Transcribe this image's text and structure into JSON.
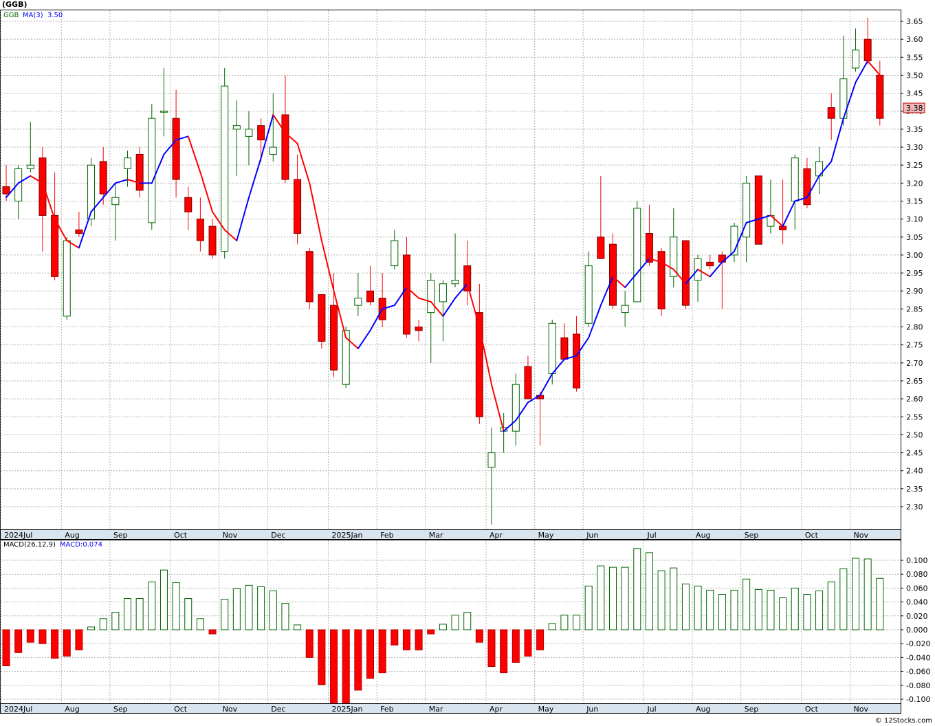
{
  "title": "(GGB)",
  "footer": "© 12Stocks.com",
  "legend": {
    "symbol": "GGB",
    "ma_label": "MA(3)",
    "ma_value": "3.50",
    "macd_label": "MACD(26,12,9)",
    "macd_value": "MACD:0.074"
  },
  "last_price_label": "3.38",
  "colors": {
    "up": "#006400",
    "down": "#ff0000",
    "ma_up": "#0000ff",
    "ma_down": "#ff0000",
    "grid": "#b0b0b0",
    "axis_bar": "#d8e4ee",
    "price_tag_bg": "#f0b8b8"
  },
  "chart_data": [
    {
      "type": "candlestick",
      "title": "(GGB)",
      "ylim": [
        2.25,
        3.67
      ],
      "yticks": [
        "2.30",
        "2.35",
        "2.40",
        "2.45",
        "2.50",
        "2.55",
        "2.60",
        "2.65",
        "2.70",
        "2.75",
        "2.80",
        "2.85",
        "2.90",
        "2.95",
        "3.00",
        "3.05",
        "3.10",
        "3.15",
        "3.20",
        "3.25",
        "3.30",
        "3.35",
        "3.40",
        "3.45",
        "3.50",
        "3.55",
        "3.60",
        "3.65"
      ],
      "month_labels": [
        {
          "label": "2024Jul",
          "week": 0
        },
        {
          "label": "Aug",
          "week": 5
        },
        {
          "label": "Sep",
          "week": 9
        },
        {
          "label": "Oct",
          "week": 14
        },
        {
          "label": "Nov",
          "week": 18
        },
        {
          "label": "Dec",
          "week": 22
        },
        {
          "label": "2025Jan",
          "week": 27
        },
        {
          "label": "Feb",
          "week": 31
        },
        {
          "label": "Mar",
          "week": 35
        },
        {
          "label": "Apr",
          "week": 40
        },
        {
          "label": "May",
          "week": 44
        },
        {
          "label": "Jun",
          "week": 48
        },
        {
          "label": "Jul",
          "week": 53
        },
        {
          "label": "Aug",
          "week": 57
        },
        {
          "label": "Sep",
          "week": 61
        },
        {
          "label": "Oct",
          "week": 66
        },
        {
          "label": "Nov",
          "week": 70
        }
      ],
      "candles": [
        {
          "o": 3.19,
          "h": 3.25,
          "l": 3.15,
          "c": 3.17
        },
        {
          "o": 3.15,
          "h": 3.25,
          "l": 3.1,
          "c": 3.24
        },
        {
          "o": 3.24,
          "h": 3.37,
          "l": 3.23,
          "c": 3.25
        },
        {
          "o": 3.27,
          "h": 3.3,
          "l": 3.01,
          "c": 3.11
        },
        {
          "o": 3.11,
          "h": 3.23,
          "l": 2.93,
          "c": 2.94
        },
        {
          "o": 2.83,
          "h": 3.05,
          "l": 2.82,
          "c": 3.04
        },
        {
          "o": 3.07,
          "h": 3.12,
          "l": 3.05,
          "c": 3.06
        },
        {
          "o": 3.1,
          "h": 3.27,
          "l": 3.08,
          "c": 3.25
        },
        {
          "o": 3.26,
          "h": 3.3,
          "l": 3.14,
          "c": 3.17
        },
        {
          "o": 3.14,
          "h": 3.2,
          "l": 3.04,
          "c": 3.16
        },
        {
          "o": 3.24,
          "h": 3.29,
          "l": 3.19,
          "c": 3.27
        },
        {
          "o": 3.28,
          "h": 3.3,
          "l": 3.16,
          "c": 3.18
        },
        {
          "o": 3.09,
          "h": 3.42,
          "l": 3.07,
          "c": 3.38
        },
        {
          "o": 3.4,
          "h": 3.52,
          "l": 3.33,
          "c": 3.4
        },
        {
          "o": 3.38,
          "h": 3.46,
          "l": 3.16,
          "c": 3.21
        },
        {
          "o": 3.16,
          "h": 3.19,
          "l": 3.07,
          "c": 3.12
        },
        {
          "o": 3.1,
          "h": 3.16,
          "l": 3.01,
          "c": 3.04
        },
        {
          "o": 3.08,
          "h": 3.1,
          "l": 2.99,
          "c": 3.0
        },
        {
          "o": 3.01,
          "h": 3.52,
          "l": 2.99,
          "c": 3.47
        },
        {
          "o": 3.35,
          "h": 3.43,
          "l": 3.22,
          "c": 3.36
        },
        {
          "o": 3.33,
          "h": 3.4,
          "l": 3.25,
          "c": 3.35
        },
        {
          "o": 3.36,
          "h": 3.38,
          "l": 3.26,
          "c": 3.32
        },
        {
          "o": 3.28,
          "h": 3.45,
          "l": 3.26,
          "c": 3.3
        },
        {
          "o": 3.39,
          "h": 3.5,
          "l": 3.2,
          "c": 3.21
        },
        {
          "o": 3.21,
          "h": 3.28,
          "l": 3.03,
          "c": 3.06
        },
        {
          "o": 3.01,
          "h": 3.02,
          "l": 2.85,
          "c": 2.87
        },
        {
          "o": 2.89,
          "h": 2.89,
          "l": 2.74,
          "c": 2.76
        },
        {
          "o": 2.86,
          "h": 2.95,
          "l": 2.66,
          "c": 2.68
        },
        {
          "o": 2.64,
          "h": 2.8,
          "l": 2.63,
          "c": 2.79
        },
        {
          "o": 2.86,
          "h": 2.95,
          "l": 2.83,
          "c": 2.88
        },
        {
          "o": 2.9,
          "h": 2.97,
          "l": 2.86,
          "c": 2.87
        },
        {
          "o": 2.88,
          "h": 2.95,
          "l": 2.8,
          "c": 2.82
        },
        {
          "o": 2.97,
          "h": 3.07,
          "l": 2.96,
          "c": 3.04
        },
        {
          "o": 3.0,
          "h": 3.05,
          "l": 2.77,
          "c": 2.78
        },
        {
          "o": 2.8,
          "h": 2.82,
          "l": 2.76,
          "c": 2.79
        },
        {
          "o": 2.84,
          "h": 2.95,
          "l": 2.7,
          "c": 2.93
        },
        {
          "o": 2.87,
          "h": 2.93,
          "l": 2.76,
          "c": 2.92
        },
        {
          "o": 2.92,
          "h": 3.06,
          "l": 2.91,
          "c": 2.93
        },
        {
          "o": 2.97,
          "h": 3.04,
          "l": 2.86,
          "c": 2.9
        },
        {
          "o": 2.84,
          "h": 2.92,
          "l": 2.53,
          "c": 2.55
        },
        {
          "o": 2.41,
          "h": 2.52,
          "l": 2.25,
          "c": 2.45
        },
        {
          "o": 2.51,
          "h": 2.56,
          "l": 2.45,
          "c": 2.52
        },
        {
          "o": 2.51,
          "h": 2.67,
          "l": 2.47,
          "c": 2.64
        },
        {
          "o": 2.69,
          "h": 2.72,
          "l": 2.6,
          "c": 2.6
        },
        {
          "o": 2.61,
          "h": 2.62,
          "l": 2.47,
          "c": 2.6
        },
        {
          "o": 2.67,
          "h": 2.82,
          "l": 2.64,
          "c": 2.81
        },
        {
          "o": 2.77,
          "h": 2.81,
          "l": 2.71,
          "c": 2.71
        },
        {
          "o": 2.78,
          "h": 2.83,
          "l": 2.62,
          "c": 2.63
        },
        {
          "o": 2.81,
          "h": 3.01,
          "l": 2.8,
          "c": 2.97
        },
        {
          "o": 3.05,
          "h": 3.22,
          "l": 2.99,
          "c": 2.99
        },
        {
          "o": 3.03,
          "h": 3.06,
          "l": 2.85,
          "c": 2.86
        },
        {
          "o": 2.84,
          "h": 2.9,
          "l": 2.8,
          "c": 2.86
        },
        {
          "o": 2.87,
          "h": 3.15,
          "l": 2.87,
          "c": 3.13
        },
        {
          "o": 3.06,
          "h": 3.14,
          "l": 2.97,
          "c": 2.98
        },
        {
          "o": 3.01,
          "h": 3.02,
          "l": 2.83,
          "c": 2.85
        },
        {
          "o": 2.94,
          "h": 3.13,
          "l": 2.91,
          "c": 3.05
        },
        {
          "o": 3.04,
          "h": 3.04,
          "l": 2.85,
          "c": 2.86
        },
        {
          "o": 2.93,
          "h": 3.0,
          "l": 2.87,
          "c": 2.99
        },
        {
          "o": 2.98,
          "h": 3.0,
          "l": 2.96,
          "c": 2.97
        },
        {
          "o": 3.0,
          "h": 3.01,
          "l": 2.85,
          "c": 2.98
        },
        {
          "o": 3.0,
          "h": 3.09,
          "l": 2.98,
          "c": 3.08
        },
        {
          "o": 3.05,
          "h": 3.22,
          "l": 2.98,
          "c": 3.2
        },
        {
          "o": 3.22,
          "h": 3.22,
          "l": 3.03,
          "c": 3.03
        },
        {
          "o": 3.08,
          "h": 3.21,
          "l": 3.06,
          "c": 3.11
        },
        {
          "o": 3.08,
          "h": 3.21,
          "l": 3.03,
          "c": 3.07
        },
        {
          "o": 3.15,
          "h": 3.28,
          "l": 3.07,
          "c": 3.27
        },
        {
          "o": 3.24,
          "h": 3.27,
          "l": 3.13,
          "c": 3.14
        },
        {
          "o": 3.22,
          "h": 3.3,
          "l": 3.17,
          "c": 3.26
        },
        {
          "o": 3.41,
          "h": 3.45,
          "l": 3.32,
          "c": 3.38
        },
        {
          "o": 3.38,
          "h": 3.61,
          "l": 3.36,
          "c": 3.49
        },
        {
          "o": 3.52,
          "h": 3.63,
          "l": 3.51,
          "c": 3.57
        },
        {
          "o": 3.6,
          "h": 3.66,
          "l": 3.53,
          "c": 3.54
        },
        {
          "o": 3.5,
          "h": 3.54,
          "l": 3.36,
          "c": 3.38
        }
      ],
      "ma3": [
        3.16,
        3.2,
        3.22,
        3.2,
        3.1,
        3.04,
        3.02,
        3.12,
        3.16,
        3.2,
        3.21,
        3.2,
        3.2,
        3.28,
        3.32,
        3.33,
        3.23,
        3.12,
        3.07,
        3.04,
        3.16,
        3.27,
        3.39,
        3.34,
        3.31,
        3.2,
        3.04,
        2.9,
        2.77,
        2.74,
        2.79,
        2.85,
        2.86,
        2.91,
        2.88,
        2.87,
        2.83,
        2.88,
        2.92,
        2.8,
        2.64,
        2.51,
        2.54,
        2.59,
        2.61,
        2.67,
        2.71,
        2.72,
        2.77,
        2.86,
        2.94,
        2.91,
        2.95,
        2.99,
        2.98,
        2.96,
        2.92,
        2.96,
        2.94,
        2.98,
        3.01,
        3.09,
        3.1,
        3.11,
        3.08,
        3.15,
        3.16,
        3.22,
        3.26,
        3.38,
        3.48,
        3.54,
        3.5
      ]
    },
    {
      "type": "bar",
      "title": "MACD(26,12,9)",
      "ylim": [
        -0.112,
        0.118
      ],
      "yticks": [
        "-0.100",
        "-0.080",
        "-0.060",
        "-0.040",
        "-0.020",
        "0.000",
        "0.020",
        "0.040",
        "0.060",
        "0.080",
        "0.100"
      ],
      "values": [
        -0.052,
        -0.033,
        -0.018,
        -0.02,
        -0.041,
        -0.038,
        -0.029,
        0.004,
        0.016,
        0.025,
        0.045,
        0.045,
        0.069,
        0.086,
        0.068,
        0.045,
        0.016,
        -0.006,
        0.044,
        0.059,
        0.064,
        0.062,
        0.056,
        0.038,
        0.007,
        -0.04,
        -0.079,
        -0.11,
        -0.108,
        -0.087,
        -0.07,
        -0.062,
        -0.022,
        -0.029,
        -0.029,
        -0.006,
        0.008,
        0.021,
        0.025,
        -0.018,
        -0.053,
        -0.062,
        -0.047,
        -0.038,
        -0.029,
        0.009,
        0.021,
        0.021,
        0.063,
        0.092,
        0.09,
        0.09,
        0.117,
        0.111,
        0.085,
        0.089,
        0.066,
        0.063,
        0.057,
        0.051,
        0.057,
        0.073,
        0.058,
        0.057,
        0.046,
        0.06,
        0.051,
        0.056,
        0.069,
        0.088,
        0.103,
        0.102,
        0.074
      ]
    }
  ]
}
